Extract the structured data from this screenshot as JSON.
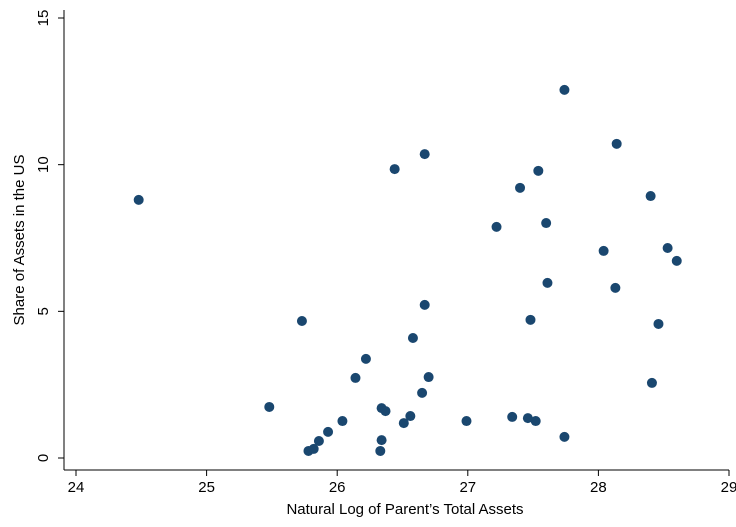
{
  "chart_data": {
    "type": "scatter",
    "xlabel": "Natural Log of Parent’s Total Assets",
    "ylabel": "Share of Assets in the US",
    "color": "#1a476f",
    "grid": false,
    "xlim": [
      24,
      29
    ],
    "xticks": [
      24,
      25,
      26,
      27,
      28,
      29
    ],
    "ylim": [
      0,
      15
    ],
    "yticks": [
      0,
      5,
      10,
      15
    ],
    "x": [
      24.48,
      25.48,
      25.73,
      25.78,
      25.82,
      25.86,
      25.93,
      26.04,
      26.14,
      26.22,
      26.34,
      26.37,
      26.34,
      26.33,
      26.44,
      26.51,
      26.56,
      26.58,
      26.65,
      26.67,
      26.67,
      26.7,
      26.99,
      27.22,
      27.34,
      27.4,
      27.46,
      27.48,
      27.52,
      27.54,
      27.6,
      27.61,
      27.74,
      27.74,
      28.04,
      28.13,
      28.14,
      28.4,
      28.41,
      28.46,
      28.53,
      28.6
    ],
    "values": [
      8.8,
      1.74,
      4.67,
      0.24,
      0.31,
      0.58,
      0.89,
      1.26,
      2.73,
      3.38,
      1.7,
      1.6,
      0.61,
      0.24,
      9.85,
      1.19,
      1.43,
      4.09,
      2.22,
      10.36,
      5.22,
      2.76,
      1.26,
      7.88,
      1.4,
      9.21,
      1.36,
      4.71,
      1.26,
      9.79,
      8.01,
      5.97,
      0.72,
      12.55,
      7.06,
      5.8,
      10.71,
      8.93,
      2.56,
      4.57,
      7.16,
      6.72
    ]
  }
}
